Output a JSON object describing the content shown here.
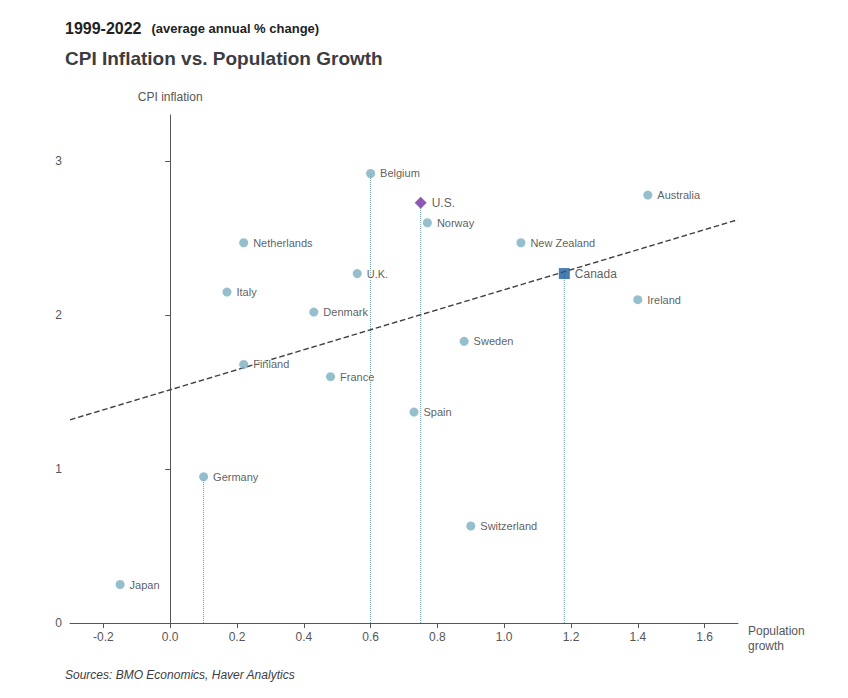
{
  "chart_data": {
    "type": "scatter",
    "title": "CPI Inflation vs. Population Growth",
    "subtitle": [
      "1999-2022",
      "(average annual % change)"
    ],
    "source": "Sources: BMO Economics, Haver Analytics",
    "xlabel": "Population\ngrowth",
    "ylabel": "CPI inflation",
    "xlim": [
      -0.3,
      1.7
    ],
    "ylim": [
      0,
      3.3
    ],
    "xticks": [
      -0.2,
      {
        "value": 0.0,
        "label": "0.0"
      },
      0.2,
      0.4,
      0.6,
      0.8,
      {
        "value": 1.0,
        "label": "1.0"
      },
      1.2,
      1.4,
      1.6
    ],
    "yticks": [
      0,
      1,
      2,
      3
    ],
    "grid": false,
    "series": [
      {
        "labels": [
          "Japan",
          "Germany",
          "Italy",
          "Netherlands",
          "Finland",
          "Denmark",
          "France",
          "U.K.",
          "Belgium",
          "Sweden",
          "Spain",
          "Switzerland",
          "New Zealand",
          "Norway",
          "Ireland",
          "Australia"
        ],
        "x": [
          -0.15,
          0.1,
          0.17,
          0.22,
          0.22,
          0.43,
          0.48,
          0.56,
          0.6,
          0.88,
          0.73,
          0.9,
          1.05,
          0.77,
          1.4,
          1.43
        ],
        "values": [
          0.25,
          0.95,
          2.15,
          2.47,
          1.68,
          2.02,
          1.6,
          2.27,
          2.92,
          1.83,
          1.37,
          0.63,
          2.47,
          2.6,
          2.1,
          2.78
        ],
        "color": "#7aafc0",
        "marker": "circle"
      },
      {
        "labels": [
          "U.S."
        ],
        "x": [
          0.75
        ],
        "values": [
          2.73
        ],
        "color": "#7030a0",
        "marker": "diamond"
      },
      {
        "labels": [
          "Canada"
        ],
        "x": [
          1.18
        ],
        "values": [
          2.27
        ],
        "color": "#1f5c9e",
        "marker": "square"
      }
    ],
    "trendline": {
      "x": [
        -0.3,
        1.7
      ],
      "values": [
        1.32,
        2.62
      ],
      "color": "#404040",
      "line_style": "dashed"
    },
    "dotted_lines": {
      "x": [
        0.1,
        0.6,
        0.75,
        1.18
      ],
      "values": [
        0.95,
        2.92,
        2.73,
        2.27
      ],
      "color": "#6699aa",
      "line_style": "dotted"
    }
  }
}
